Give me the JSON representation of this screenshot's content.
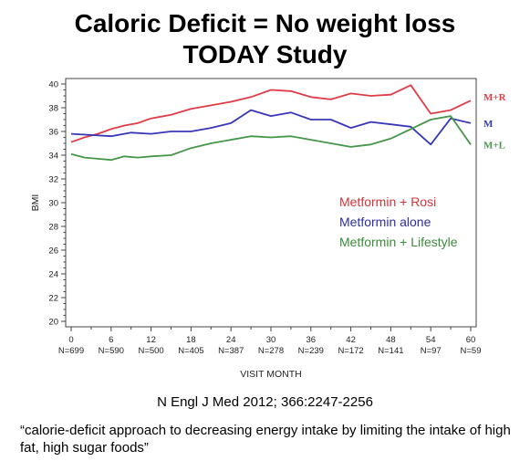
{
  "title_line1": "Caloric Deficit = No weight loss",
  "title_line2": "TODAY Study",
  "citation": "N Engl J Med 2012; 366:2247-2256",
  "quote": "“calorie-deficit approach to decreasing energy intake by limiting the intake of high fat, high sugar foods”",
  "chart_data": {
    "type": "line",
    "title": "",
    "xlabel": "VISIT MONTH",
    "ylabel": "BMI",
    "xlim": [
      0,
      60
    ],
    "ylim": [
      20,
      40
    ],
    "yticks": [
      20,
      22,
      24,
      26,
      28,
      30,
      32,
      34,
      36,
      38,
      40
    ],
    "xticks": [
      {
        "month": 0,
        "n": "N=699"
      },
      {
        "month": 6,
        "n": "N=590"
      },
      {
        "month": 12,
        "n": "N=500"
      },
      {
        "month": 18,
        "n": "N=405"
      },
      {
        "month": 24,
        "n": "N=387"
      },
      {
        "month": 30,
        "n": "N=278"
      },
      {
        "month": 36,
        "n": "N=239"
      },
      {
        "month": 42,
        "n": "N=172"
      },
      {
        "month": 48,
        "n": "N=141"
      },
      {
        "month": 54,
        "n": "N=97"
      },
      {
        "month": 60,
        "n": "N=59"
      }
    ],
    "legend": {
      "placement": "right",
      "entries": [
        {
          "label": "Metformin + Rosi",
          "color": "#d0343a"
        },
        {
          "label": "Metformin alone",
          "color": "#2e2ea5"
        },
        {
          "label": "Metformin + Lifestyle",
          "color": "#3a8a3a"
        }
      ]
    },
    "series": [
      {
        "end_label": "M+R",
        "color": "#e03c48",
        "x": [
          0,
          2,
          4,
          6,
          8,
          10,
          12,
          15,
          18,
          21,
          24,
          27,
          30,
          33,
          36,
          39,
          42,
          45,
          48,
          51,
          54,
          57,
          60
        ],
        "y": [
          35.1,
          35.5,
          35.8,
          36.2,
          36.5,
          36.7,
          37.1,
          37.4,
          37.9,
          38.2,
          38.5,
          38.9,
          39.5,
          39.4,
          38.9,
          38.7,
          39.2,
          39.0,
          39.1,
          39.9,
          37.5,
          37.8,
          38.6
        ]
      },
      {
        "end_label": "M",
        "color": "#3737b8",
        "x": [
          0,
          3,
          6,
          9,
          12,
          15,
          18,
          21,
          24,
          27,
          30,
          33,
          36,
          39,
          42,
          45,
          48,
          51,
          54,
          57,
          60
        ],
        "y": [
          35.8,
          35.7,
          35.6,
          35.9,
          35.8,
          36.0,
          36.0,
          36.3,
          36.7,
          37.8,
          37.3,
          37.6,
          37.0,
          37.0,
          36.3,
          36.8,
          36.6,
          36.4,
          34.9,
          37.1,
          36.7
        ]
      },
      {
        "end_label": "M+L",
        "color": "#45964a",
        "x": [
          0,
          2,
          4,
          6,
          8,
          10,
          12,
          15,
          18,
          21,
          24,
          27,
          30,
          33,
          36,
          39,
          42,
          45,
          48,
          51,
          54,
          57,
          60
        ],
        "y": [
          34.1,
          33.8,
          33.7,
          33.6,
          33.9,
          33.8,
          33.9,
          34.0,
          34.6,
          35.0,
          35.3,
          35.6,
          35.5,
          35.6,
          35.3,
          35.0,
          34.7,
          34.9,
          35.4,
          36.2,
          37.0,
          37.3,
          34.9
        ]
      }
    ]
  }
}
